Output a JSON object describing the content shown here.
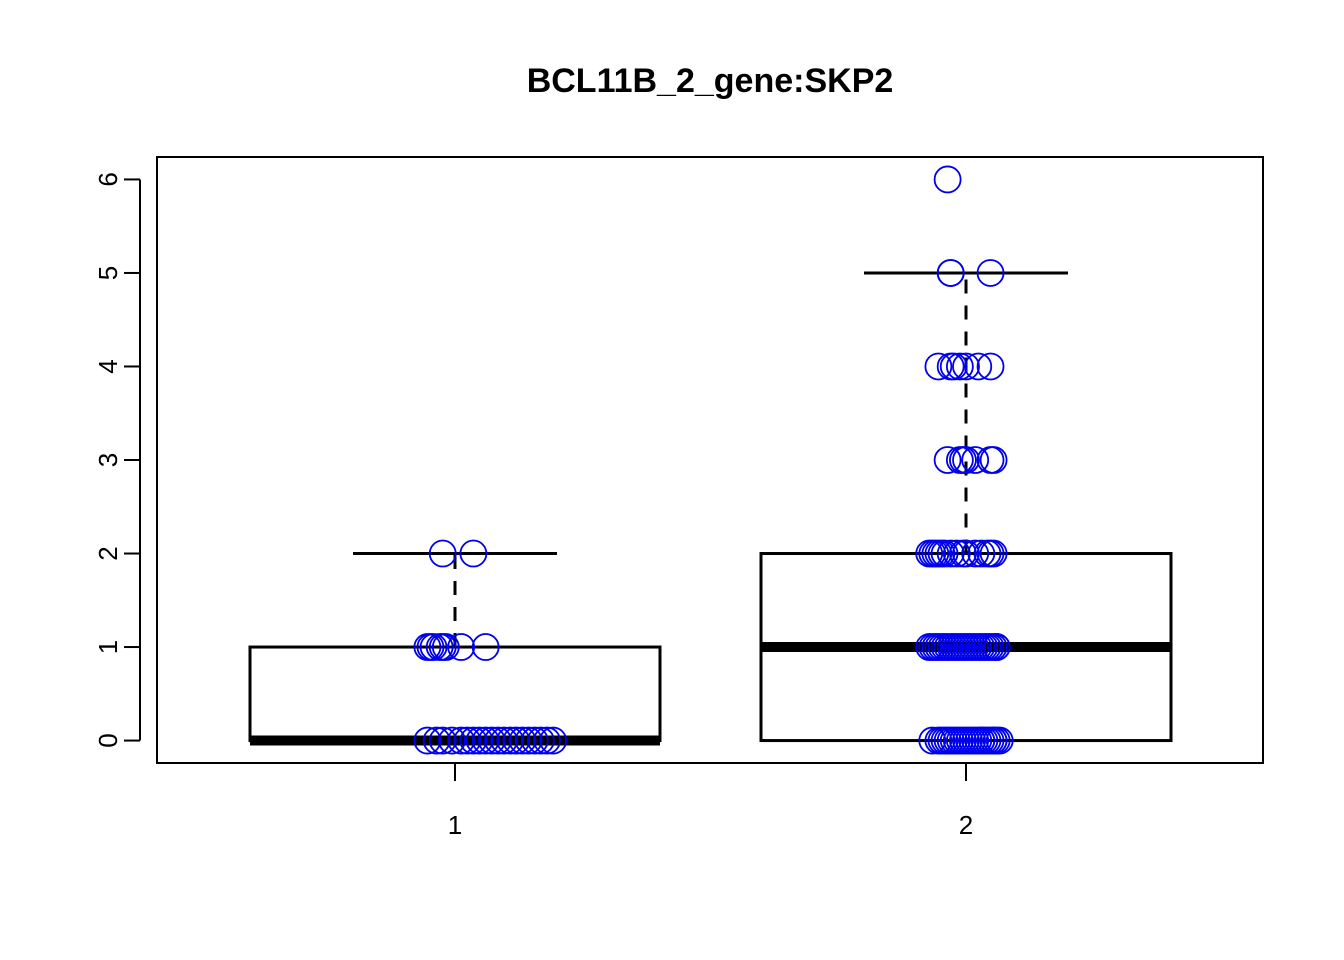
{
  "chart_data": {
    "type": "boxplot",
    "title": "BCL11B_2_gene:SKP2",
    "xlabel": "",
    "ylabel": "",
    "categories": [
      "1",
      "2"
    ],
    "ylim": [
      -0.24,
      6.24
    ],
    "y_ticks": [
      0,
      1,
      2,
      3,
      4,
      5,
      6
    ],
    "y_tick_labels": [
      "0",
      "1",
      "2",
      "3",
      "4",
      "5",
      "6"
    ],
    "grid": false,
    "legend": "none",
    "box_color": "#000000",
    "point_color": "#0000ee",
    "boxes": [
      {
        "category": "1",
        "whisker_low": 0,
        "q1": 0,
        "median": 0,
        "q3": 1,
        "whisker_high": 2
      },
      {
        "category": "2",
        "whisker_low": 0,
        "q1": 0,
        "median": 1,
        "q3": 2,
        "whisker_high": 5
      }
    ],
    "points": [
      {
        "category": "1",
        "values": [
          0,
          0,
          0,
          0,
          0,
          0,
          0,
          0,
          0,
          0,
          0,
          0,
          0,
          0,
          0,
          0,
          0,
          0,
          0,
          0,
          1,
          1,
          1,
          1,
          1,
          1,
          1,
          1,
          2,
          2
        ],
        "jitter": [
          -0.09,
          -0.06,
          -0.04,
          -0.01,
          0.02,
          0.04,
          0.06,
          0.08,
          0.1,
          0.12,
          0.14,
          0.16,
          0.18,
          0.2,
          0.22,
          0.24,
          0.26,
          0.28,
          0.3,
          0.32,
          -0.09,
          -0.08,
          -0.07,
          -0.05,
          -0.04,
          -0.03,
          0.02,
          0.1,
          -0.04,
          0.06
        ]
      },
      {
        "category": "2",
        "values": [
          0,
          0,
          0,
          0,
          0,
          0,
          0,
          0,
          0,
          0,
          0,
          0,
          0,
          0,
          0,
          0,
          0,
          0,
          0,
          0,
          0,
          0,
          0,
          0,
          1,
          1,
          1,
          1,
          1,
          1,
          1,
          1,
          1,
          1,
          1,
          1,
          1,
          1,
          1,
          1,
          1,
          1,
          1,
          1,
          1,
          1,
          1,
          1,
          2,
          2,
          2,
          2,
          2,
          2,
          2,
          2,
          2,
          2,
          2,
          2,
          2,
          2,
          2,
          3,
          3,
          3,
          3,
          3,
          3,
          3,
          4,
          4,
          4,
          4,
          4,
          4,
          4,
          5,
          5,
          5,
          6
        ],
        "jitter": [
          -0.11,
          -0.09,
          -0.08,
          -0.06,
          -0.05,
          -0.04,
          -0.02,
          -0.01,
          0.0,
          0.01,
          0.02,
          0.03,
          0.04,
          0.05,
          0.06,
          0.07,
          0.08,
          0.09,
          0.1,
          0.11,
          -0.07,
          -0.03,
          0.05,
          0.09,
          -0.12,
          -0.11,
          -0.1,
          -0.09,
          -0.08,
          -0.07,
          -0.06,
          -0.05,
          -0.04,
          -0.03,
          -0.02,
          -0.01,
          0.0,
          0.01,
          0.02,
          0.03,
          0.04,
          0.05,
          0.06,
          0.07,
          0.08,
          0.09,
          0.1,
          0.1,
          -0.12,
          -0.11,
          -0.1,
          -0.09,
          -0.08,
          -0.07,
          -0.05,
          -0.03,
          -0.01,
          0.0,
          0.03,
          0.05,
          0.07,
          0.08,
          0.09,
          -0.06,
          -0.02,
          -0.01,
          0.0,
          0.03,
          0.08,
          0.09,
          -0.09,
          -0.05,
          -0.04,
          -0.02,
          0.0,
          0.04,
          0.08,
          -0.05,
          -0.05,
          0.08,
          -0.06
        ]
      }
    ]
  }
}
